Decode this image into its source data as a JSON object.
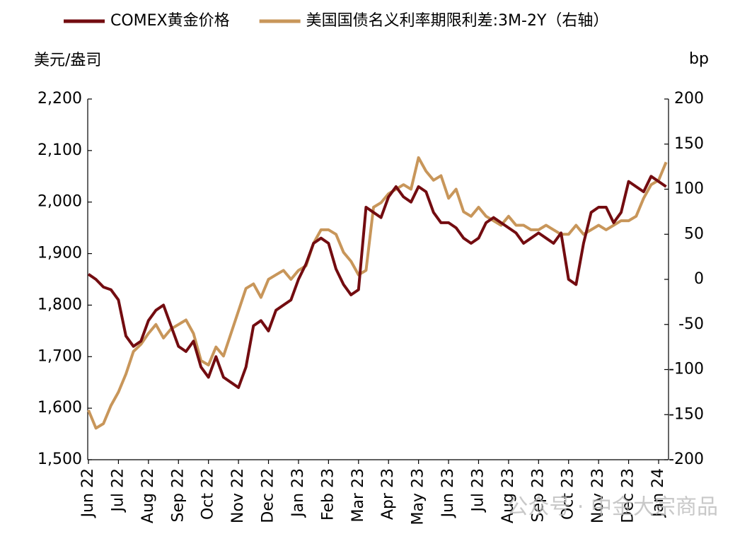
{
  "chart_data": {
    "type": "line",
    "ylabel": "美元/盎司",
    "y2label": "bp",
    "watermark": "公众号 · 中金大宗商品",
    "categories": [
      "Jun 22",
      null,
      null,
      null,
      "Jul 22",
      null,
      null,
      null,
      "Aug 22",
      null,
      null,
      null,
      "Sep 22",
      null,
      null,
      null,
      "Oct 22",
      null,
      null,
      null,
      "Nov 22",
      null,
      null,
      null,
      "Dec 22",
      null,
      null,
      null,
      "Jan 23",
      null,
      null,
      null,
      "Feb 23",
      null,
      null,
      null,
      "Mar 23",
      null,
      null,
      null,
      "Apr 23",
      null,
      null,
      null,
      "May 23",
      null,
      null,
      null,
      "Jun 23",
      null,
      null,
      null,
      "Jul 23",
      null,
      null,
      null,
      "Aug 23",
      null,
      null,
      null,
      "Sep 23",
      null,
      null,
      null,
      "Oct 23",
      null,
      null,
      null,
      "Nov 23",
      null,
      null,
      null,
      "Dec 23",
      null,
      null,
      null,
      "Jan 24",
      null
    ],
    "series": [
      {
        "name": "COMEX黄金价格",
        "color": "#730c10",
        "values": [
          1860,
          1850,
          1835,
          1830,
          1810,
          1740,
          1720,
          1730,
          1770,
          1790,
          1800,
          1760,
          1720,
          1710,
          1730,
          1680,
          1660,
          1700,
          1660,
          1650,
          1640,
          1680,
          1760,
          1770,
          1750,
          1790,
          1800,
          1810,
          1850,
          1880,
          1920,
          1930,
          1920,
          1870,
          1840,
          1820,
          1830,
          1990,
          1980,
          1970,
          2010,
          2030,
          2010,
          2000,
          2030,
          2020,
          1980,
          1960,
          1960,
          1950,
          1930,
          1920,
          1930,
          1960,
          1970,
          1960,
          1950,
          1940,
          1920,
          1930,
          1940,
          1930,
          1920,
          1940,
          1850,
          1840,
          1920,
          1980,
          1990,
          1990,
          1960,
          1980,
          2040,
          2030,
          2020,
          2050,
          2040,
          2030
        ]
      },
      {
        "name": "美国国债名义利率期限利差:3M-2Y（右轴）",
        "color": "#c8965a",
        "axis": "y2",
        "values": [
          -145,
          -165,
          -160,
          -140,
          -125,
          -105,
          -80,
          -72,
          -60,
          -50,
          -65,
          -55,
          -50,
          -45,
          -60,
          -90,
          -95,
          -75,
          -85,
          -60,
          -35,
          -10,
          -5,
          -20,
          0,
          5,
          10,
          0,
          10,
          15,
          40,
          55,
          55,
          50,
          30,
          20,
          5,
          10,
          80,
          85,
          95,
          100,
          105,
          100,
          135,
          120,
          110,
          115,
          90,
          100,
          75,
          70,
          80,
          70,
          65,
          60,
          70,
          60,
          60,
          55,
          55,
          60,
          55,
          50,
          50,
          60,
          50,
          55,
          60,
          55,
          60,
          65,
          65,
          70,
          90,
          105,
          110,
          130
        ]
      }
    ],
    "ylim": [
      1500,
      2200
    ],
    "yticks": [
      {
        "value": 1500,
        "label": "1,500"
      },
      {
        "value": 1600,
        "label": "1,600"
      },
      {
        "value": 1700,
        "label": "1,700"
      },
      {
        "value": 1800,
        "label": "1,800"
      },
      {
        "value": 1900,
        "label": "1,900"
      },
      {
        "value": 2000,
        "label": "2,000"
      },
      {
        "value": 2100,
        "label": "2,100"
      },
      {
        "value": 2200,
        "label": "2,200"
      }
    ],
    "y2lim": [
      -200,
      200
    ],
    "y2ticks": [
      -200,
      -150,
      -100,
      -50,
      0,
      50,
      100,
      150,
      200
    ],
    "legend": "top"
  }
}
